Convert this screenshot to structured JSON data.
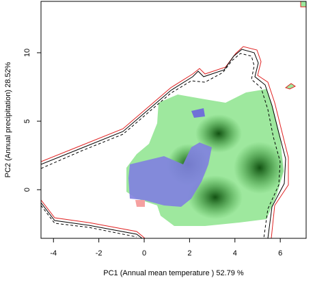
{
  "chart_data": {
    "type": "niche",
    "xlabel": "PC1 (Annual mean temperature ) 52.79 %",
    "ylabel": "PC2 (Annual precipitation) 28.52%",
    "xlim": [
      -4.55,
      7.14
    ],
    "ylim": [
      -3.55,
      13.75
    ],
    "xticks": [
      -4,
      -2,
      0,
      2,
      4,
      6
    ],
    "yticks": [
      0,
      5,
      10
    ]
  }
}
